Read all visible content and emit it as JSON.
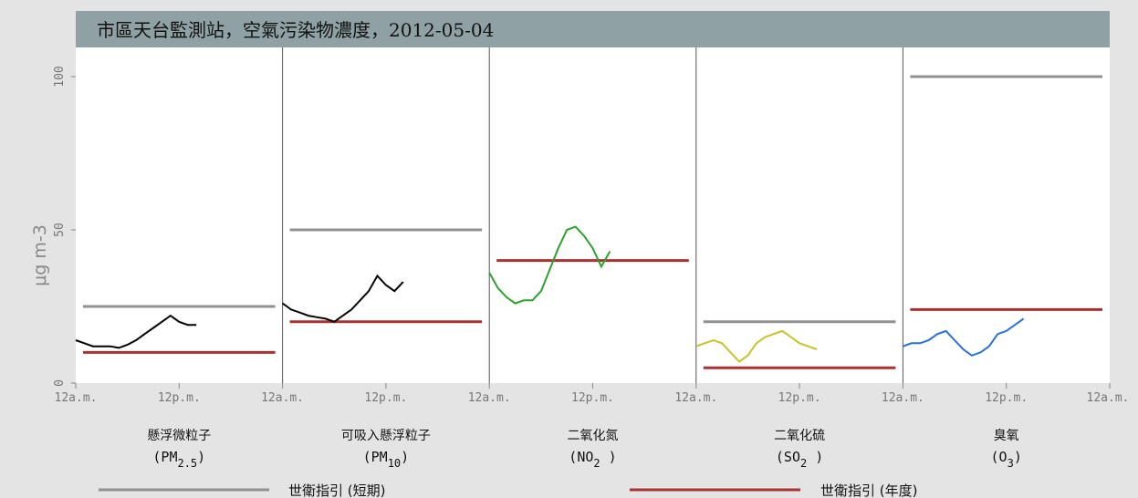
{
  "chart_data": {
    "type": "line",
    "title": "市區天台監測站，空氣污染物濃度，2012-05-04",
    "ylabel": "μg m-3",
    "ylim": [
      0,
      100
    ],
    "yticks": [
      "0",
      "50",
      "100"
    ],
    "xticks": [
      "12a.m.",
      "12p.m.",
      "12a.m."
    ],
    "legend": [
      {
        "label": "世衛指引 (短期)",
        "color": "#909090"
      },
      {
        "label": "世衛指引 (年度)",
        "color": "#a83232"
      }
    ],
    "panels": [
      {
        "name": "懸浮微粒子",
        "formula": "(PM",
        "sub": "2.5",
        "close": ")",
        "color": "#000000",
        "short_term": 25,
        "annual": 10,
        "series": [
          [
            0,
            14
          ],
          [
            1,
            13
          ],
          [
            2,
            12
          ],
          [
            3,
            12
          ],
          [
            4,
            12
          ],
          [
            5,
            11.5
          ],
          [
            6,
            12.5
          ],
          [
            7,
            14
          ],
          [
            8,
            16
          ],
          [
            9,
            18
          ],
          [
            10,
            20
          ],
          [
            11,
            22
          ],
          [
            12,
            20
          ],
          [
            13,
            19
          ],
          [
            14,
            19
          ]
        ]
      },
      {
        "name": "可吸入懸浮粒子",
        "formula": "(PM",
        "sub": "10",
        "close": ")",
        "color": "#000000",
        "short_term": 50,
        "annual": 20,
        "series": [
          [
            0,
            26
          ],
          [
            1,
            24
          ],
          [
            2,
            23
          ],
          [
            3,
            22
          ],
          [
            4,
            21.5
          ],
          [
            5,
            21
          ],
          [
            6,
            20
          ],
          [
            7,
            22
          ],
          [
            8,
            24
          ],
          [
            9,
            27
          ],
          [
            10,
            30
          ],
          [
            11,
            35
          ],
          [
            12,
            32
          ],
          [
            13,
            30
          ],
          [
            14,
            33
          ]
        ]
      },
      {
        "name": "二氧化氮",
        "formula": "(NO",
        "sub": "2",
        "close": " )",
        "color": "#2da02d",
        "short_term": null,
        "annual": 40,
        "series": [
          [
            0,
            36
          ],
          [
            1,
            31
          ],
          [
            2,
            28
          ],
          [
            3,
            26
          ],
          [
            4,
            27
          ],
          [
            5,
            27
          ],
          [
            6,
            30
          ],
          [
            7,
            37
          ],
          [
            8,
            44
          ],
          [
            9,
            50
          ],
          [
            10,
            51
          ],
          [
            11,
            48
          ],
          [
            12,
            44
          ],
          [
            13,
            38
          ],
          [
            14,
            43
          ]
        ]
      },
      {
        "name": "二氧化硫",
        "formula": "(SO",
        "sub": "2",
        "close": " )",
        "color": "#c9c22a",
        "short_term": 20,
        "annual": 5,
        "series": [
          [
            0,
            12
          ],
          [
            1,
            13
          ],
          [
            2,
            14
          ],
          [
            3,
            13
          ],
          [
            4,
            10
          ],
          [
            5,
            7
          ],
          [
            6,
            9
          ],
          [
            7,
            13
          ],
          [
            8,
            15
          ],
          [
            9,
            16
          ],
          [
            10,
            17
          ],
          [
            11,
            15
          ],
          [
            12,
            13
          ],
          [
            13,
            12
          ],
          [
            14,
            11
          ]
        ]
      },
      {
        "name": "臭氧",
        "formula": "(O",
        "sub": "3",
        "close": ")",
        "color": "#2a6fd6",
        "short_term": 100,
        "annual": 24,
        "series": [
          [
            0,
            12
          ],
          [
            1,
            13
          ],
          [
            2,
            13
          ],
          [
            3,
            14
          ],
          [
            4,
            16
          ],
          [
            5,
            17
          ],
          [
            6,
            14
          ],
          [
            7,
            11
          ],
          [
            8,
            9
          ],
          [
            9,
            10
          ],
          [
            10,
            12
          ],
          [
            11,
            16
          ],
          [
            12,
            17
          ],
          [
            13,
            19
          ],
          [
            14,
            21
          ]
        ]
      }
    ]
  }
}
